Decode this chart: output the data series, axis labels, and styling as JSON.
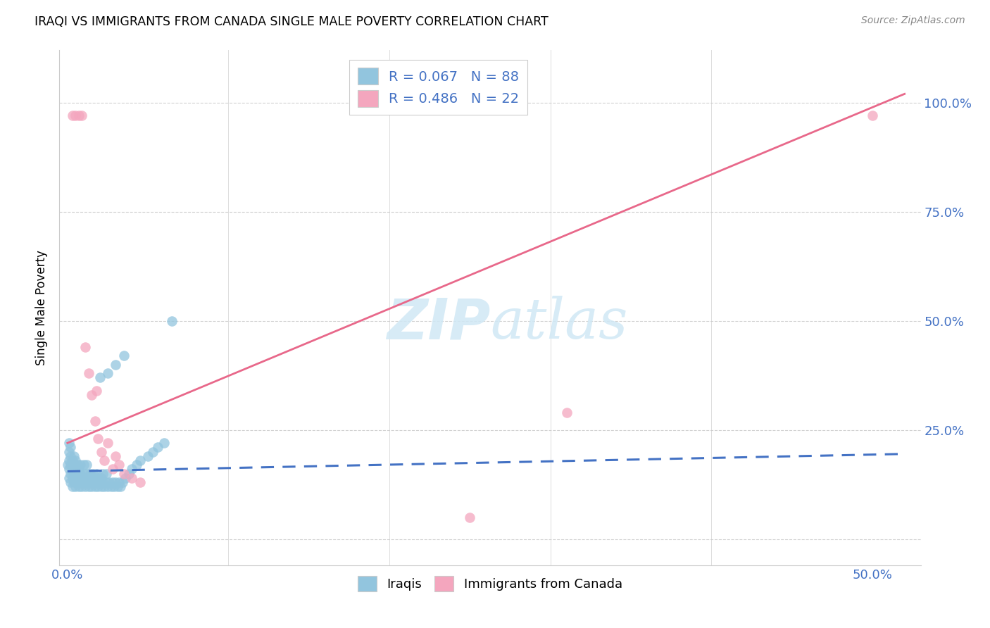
{
  "title": "IRAQI VS IMMIGRANTS FROM CANADA SINGLE MALE POVERTY CORRELATION CHART",
  "source": "Source: ZipAtlas.com",
  "ylabel": "Single Male Poverty",
  "xlim": [
    -0.005,
    0.53
  ],
  "ylim": [
    -0.06,
    1.12
  ],
  "iraqis_color": "#92c5de",
  "canada_color": "#f4a6be",
  "iraqis_trend_color": "#4472c4",
  "canada_trend_color": "#e8688a",
  "watermark_color": "#d0e8f5",
  "iraqis_x": [
    0.0,
    0.001,
    0.001,
    0.001,
    0.001,
    0.001,
    0.002,
    0.002,
    0.002,
    0.002,
    0.002,
    0.003,
    0.003,
    0.003,
    0.003,
    0.004,
    0.004,
    0.004,
    0.004,
    0.005,
    0.005,
    0.005,
    0.005,
    0.006,
    0.006,
    0.006,
    0.007,
    0.007,
    0.007,
    0.008,
    0.008,
    0.008,
    0.009,
    0.009,
    0.01,
    0.01,
    0.01,
    0.011,
    0.011,
    0.012,
    0.012,
    0.012,
    0.013,
    0.013,
    0.014,
    0.014,
    0.015,
    0.015,
    0.016,
    0.016,
    0.017,
    0.017,
    0.018,
    0.018,
    0.019,
    0.019,
    0.02,
    0.021,
    0.021,
    0.022,
    0.022,
    0.023,
    0.024,
    0.024,
    0.025,
    0.026,
    0.027,
    0.028,
    0.029,
    0.03,
    0.031,
    0.032,
    0.033,
    0.034,
    0.036,
    0.038,
    0.04,
    0.043,
    0.045,
    0.05,
    0.053,
    0.056,
    0.06,
    0.065,
    0.02,
    0.025,
    0.03,
    0.035
  ],
  "iraqis_y": [
    0.17,
    0.14,
    0.16,
    0.18,
    0.2,
    0.22,
    0.13,
    0.15,
    0.17,
    0.19,
    0.21,
    0.12,
    0.14,
    0.16,
    0.18,
    0.13,
    0.15,
    0.17,
    0.19,
    0.12,
    0.14,
    0.16,
    0.18,
    0.13,
    0.15,
    0.17,
    0.12,
    0.14,
    0.16,
    0.13,
    0.15,
    0.17,
    0.12,
    0.14,
    0.13,
    0.15,
    0.17,
    0.12,
    0.14,
    0.13,
    0.15,
    0.17,
    0.12,
    0.14,
    0.13,
    0.15,
    0.12,
    0.14,
    0.13,
    0.15,
    0.12,
    0.14,
    0.13,
    0.15,
    0.12,
    0.14,
    0.13,
    0.12,
    0.14,
    0.13,
    0.15,
    0.12,
    0.13,
    0.15,
    0.12,
    0.13,
    0.12,
    0.13,
    0.12,
    0.13,
    0.12,
    0.13,
    0.12,
    0.13,
    0.14,
    0.15,
    0.16,
    0.17,
    0.18,
    0.19,
    0.2,
    0.21,
    0.22,
    0.5,
    0.37,
    0.38,
    0.4,
    0.42
  ],
  "canada_x": [
    0.003,
    0.005,
    0.007,
    0.009,
    0.011,
    0.013,
    0.015,
    0.017,
    0.019,
    0.021,
    0.023,
    0.025,
    0.028,
    0.03,
    0.032,
    0.035,
    0.04,
    0.045,
    0.25,
    0.31,
    0.5,
    0.018
  ],
  "canada_y": [
    0.97,
    0.97,
    0.97,
    0.97,
    0.44,
    0.38,
    0.33,
    0.27,
    0.23,
    0.2,
    0.18,
    0.22,
    0.16,
    0.19,
    0.17,
    0.15,
    0.14,
    0.13,
    0.05,
    0.29,
    0.97,
    0.34
  ],
  "iraqis_trend_x": [
    0.0,
    0.52
  ],
  "iraqis_trend_y": [
    0.155,
    0.195
  ],
  "canada_trend_x": [
    0.0,
    0.52
  ],
  "canada_trend_y": [
    0.22,
    1.02
  ]
}
